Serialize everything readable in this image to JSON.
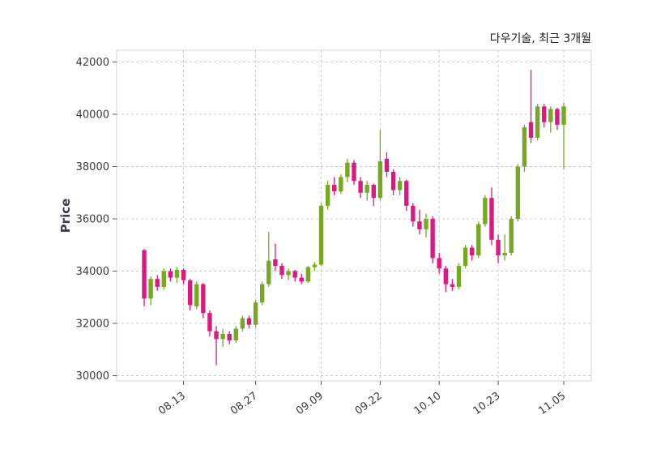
{
  "title": "다우기술, 최근 3개월",
  "chart_data": {
    "type": "candlestick",
    "title": "다우기술, 최근 3개월",
    "ylabel": "Price",
    "ylim": [
      29800,
      42450
    ],
    "yticks": [
      30000,
      32000,
      34000,
      36000,
      38000,
      40000,
      42000
    ],
    "xticks": [
      {
        "index": 6,
        "label": "08.13"
      },
      {
        "index": 17,
        "label": "08.27"
      },
      {
        "index": 27,
        "label": "09.09"
      },
      {
        "index": 36,
        "label": "09.22"
      },
      {
        "index": 45,
        "label": "10.10"
      },
      {
        "index": 54,
        "label": "10.23"
      },
      {
        "index": 64,
        "label": "11.05"
      }
    ],
    "up_color": "#76a823",
    "down_color": "#d91a80",
    "grid_color": "#cccccc",
    "tick_label_color": "#3a3a3a",
    "candles": [
      [
        34800,
        34850,
        32650,
        32950
      ],
      [
        32950,
        33800,
        32700,
        33700
      ],
      [
        33700,
        33850,
        33250,
        33400
      ],
      [
        33400,
        34100,
        33300,
        34000
      ],
      [
        34000,
        34100,
        33600,
        33750
      ],
      [
        33750,
        34150,
        33550,
        34050
      ],
      [
        34050,
        34100,
        33500,
        33650
      ],
      [
        33650,
        33700,
        32500,
        32700
      ],
      [
        32650,
        33600,
        32550,
        33500
      ],
      [
        33500,
        33550,
        32200,
        32400
      ],
      [
        32400,
        32500,
        31500,
        31700
      ],
      [
        31700,
        31900,
        30400,
        31400
      ],
      [
        31400,
        31800,
        31100,
        31600
      ],
      [
        31600,
        31700,
        31200,
        31350
      ],
      [
        31350,
        31900,
        31250,
        31800
      ],
      [
        31800,
        32300,
        31700,
        32200
      ],
      [
        32200,
        32300,
        31800,
        31950
      ],
      [
        31950,
        32900,
        31850,
        32800
      ],
      [
        32800,
        33600,
        32700,
        33500
      ],
      [
        33500,
        35500,
        33400,
        34400
      ],
      [
        34450,
        35050,
        34000,
        34200
      ],
      [
        34200,
        34300,
        33700,
        33850
      ],
      [
        33850,
        34100,
        33650,
        34000
      ],
      [
        34000,
        34050,
        33600,
        33750
      ],
      [
        33750,
        33900,
        33500,
        33600
      ],
      [
        33600,
        34200,
        33550,
        34150
      ],
      [
        34150,
        34350,
        34000,
        34250
      ],
      [
        34250,
        36600,
        34200,
        36500
      ],
      [
        36500,
        37450,
        36350,
        37300
      ],
      [
        37300,
        37600,
        36900,
        37050
      ],
      [
        37050,
        37700,
        36950,
        37600
      ],
      [
        37600,
        38300,
        37400,
        38150
      ],
      [
        38150,
        38250,
        37300,
        37450
      ],
      [
        37450,
        37600,
        36800,
        37000
      ],
      [
        37000,
        37450,
        36700,
        37300
      ],
      [
        37300,
        37350,
        36500,
        36800
      ],
      [
        36800,
        39400,
        36700,
        38200
      ],
      [
        38300,
        38550,
        37600,
        37800
      ],
      [
        37800,
        37900,
        36900,
        37100
      ],
      [
        37100,
        37600,
        36900,
        37450
      ],
      [
        37450,
        37500,
        36300,
        36500
      ],
      [
        36500,
        36600,
        35700,
        35900
      ],
      [
        35900,
        36350,
        35400,
        35600
      ],
      [
        35600,
        36200,
        35300,
        36000
      ],
      [
        36000,
        36100,
        34300,
        34500
      ],
      [
        34500,
        34700,
        33900,
        34100
      ],
      [
        34100,
        34200,
        33200,
        33500
      ],
      [
        33500,
        33700,
        33250,
        33400
      ],
      [
        33400,
        34300,
        33300,
        34200
      ],
      [
        34200,
        35000,
        34100,
        34900
      ],
      [
        34900,
        35000,
        34400,
        34600
      ],
      [
        34600,
        35900,
        34500,
        35800
      ],
      [
        35800,
        36900,
        35700,
        36800
      ],
      [
        36800,
        37200,
        35000,
        35200
      ],
      [
        35200,
        35400,
        34300,
        34600
      ],
      [
        34600,
        35400,
        34400,
        34700
      ],
      [
        34700,
        36100,
        34600,
        36000
      ],
      [
        36000,
        38100,
        35900,
        38000
      ],
      [
        38000,
        39600,
        37800,
        39500
      ],
      [
        39700,
        41700,
        38900,
        39100
      ],
      [
        39100,
        40400,
        39000,
        40300
      ],
      [
        40300,
        40400,
        39500,
        39700
      ],
      [
        39700,
        40300,
        39300,
        40200
      ],
      [
        40200,
        40250,
        39400,
        39600
      ],
      [
        39600,
        40450,
        37900,
        40300
      ]
    ]
  }
}
